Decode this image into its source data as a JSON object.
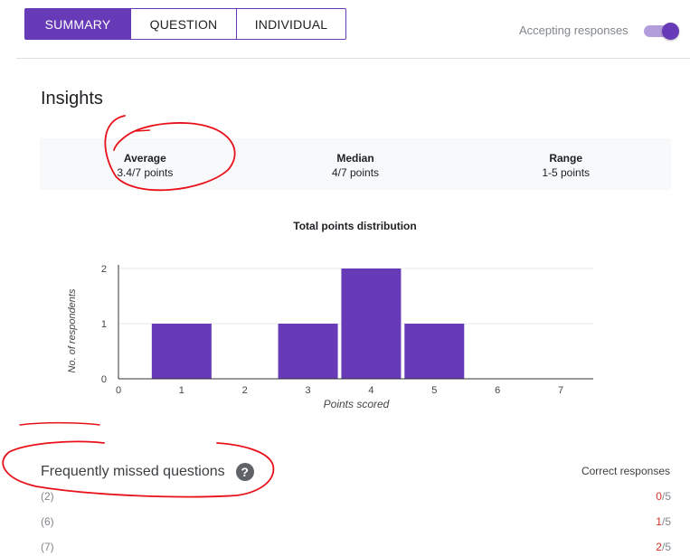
{
  "tabs": [
    {
      "label": "SUMMARY",
      "active": true
    },
    {
      "label": "QUESTION",
      "active": false
    },
    {
      "label": "INDIVIDUAL",
      "active": false
    }
  ],
  "accepting": {
    "label": "Accepting responses",
    "on": true
  },
  "insights": {
    "title": "Insights",
    "stats": [
      {
        "label": "Average",
        "value": "3.4/7 points"
      },
      {
        "label": "Median",
        "value": "4/7 points"
      },
      {
        "label": "Range",
        "value": "1-5 points"
      }
    ]
  },
  "chart_data": {
    "type": "bar",
    "title": "Total points distribution",
    "xlabel": "Points scored",
    "ylabel": "No. of respondents",
    "categories": [
      "1",
      "2",
      "3",
      "4",
      "5",
      "6",
      "7"
    ],
    "x_ticks": [
      "0",
      "1",
      "2",
      "3",
      "4",
      "5",
      "6",
      "7"
    ],
    "y_ticks": [
      "0",
      "1",
      "2"
    ],
    "values": [
      1,
      0,
      1,
      2,
      1,
      0,
      0
    ],
    "ylim": [
      0,
      2
    ],
    "color": "#673ab7",
    "grid": true
  },
  "missed": {
    "title": "Frequently missed questions",
    "correct_header": "Correct responses",
    "rows": [
      {
        "q": "(2)",
        "correct": "0",
        "total": "/5"
      },
      {
        "q": "(6)",
        "correct": "1",
        "total": "/5"
      },
      {
        "q": "(7)",
        "correct": "2",
        "total": "/5"
      }
    ]
  },
  "colors": {
    "accent": "#673ab7",
    "annotation": "#e8101a",
    "wrong": "#d93025"
  }
}
